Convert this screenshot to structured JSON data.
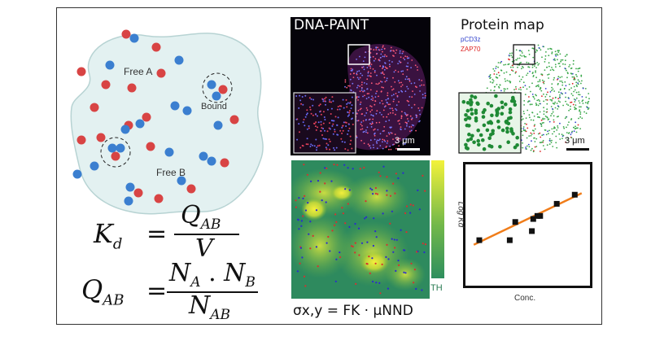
{
  "schematic": {
    "free_a_label": "Free A",
    "free_b_label": "Free B",
    "bound_label": "Bound"
  },
  "equations": {
    "kd_lhs": "K",
    "kd_sub": "d",
    "equals": "=",
    "kd_num": "Q",
    "kd_num_sub": "AB",
    "kd_den": "V",
    "q_lhs": "Q",
    "q_lhs_sub": "AB",
    "q_num_a": "N",
    "q_num_a_sub": "A",
    "q_dot": ".",
    "q_num_b": "N",
    "q_num_b_sub": "B",
    "q_den": "N",
    "q_den_sub": "AB"
  },
  "dna_paint": {
    "title": "DNA-PAINT",
    "scale_label": "3 μm"
  },
  "protein_map": {
    "title": "Protein map",
    "legend_1": "pCD3z",
    "legend_2": "ZAP70",
    "scale_label": "3 μm"
  },
  "heatmap": {
    "colorbar_label": "TH",
    "formula": "σx,y = FK · μNND"
  },
  "chart_data": {
    "type": "scatter",
    "title": "",
    "xlabel": "Conc.",
    "ylabel": "Log Kd",
    "points": [
      [
        1,
        3.0
      ],
      [
        3.2,
        3.0
      ],
      [
        3.6,
        4.2
      ],
      [
        4.8,
        3.6
      ],
      [
        4.9,
        4.4
      ],
      [
        5.2,
        4.6
      ],
      [
        5.4,
        4.6
      ],
      [
        6.6,
        5.4
      ],
      [
        7.9,
        6.0
      ]
    ],
    "fit": [
      [
        0.6,
        2.7
      ],
      [
        8.4,
        6.1
      ]
    ],
    "xlim": [
      0,
      9
    ],
    "ylim": [
      0,
      8
    ],
    "grid": false,
    "colors": {
      "points": "#111111",
      "fit": "#f07d1a"
    }
  }
}
